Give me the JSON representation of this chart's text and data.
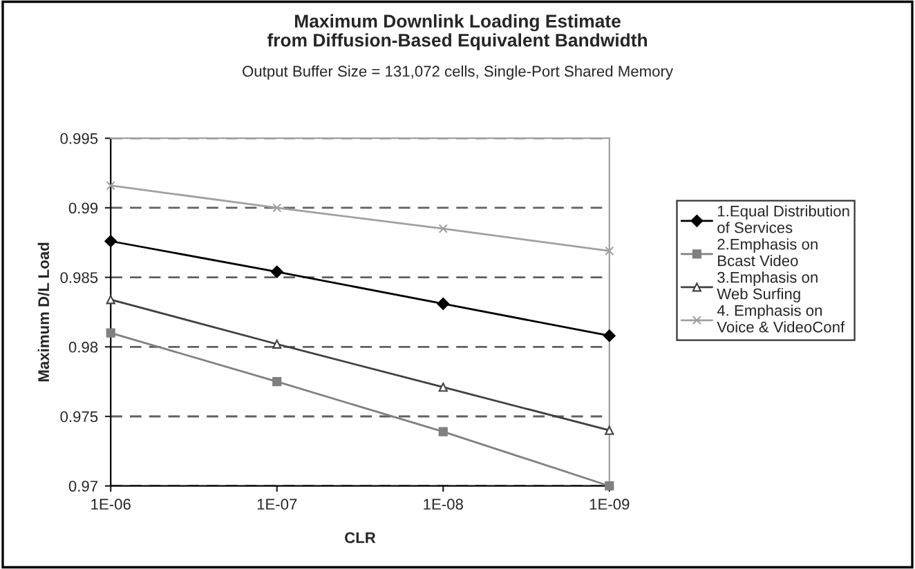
{
  "chart_data": {
    "type": "line",
    "title": "Maximum Downlink Loading Estimate\nfrom Diffusion-Based Equivalent Bandwidth",
    "subtitle": "Output Buffer Size = 131,072 cells, Single-Port Shared Memory",
    "xlabel": "CLR",
    "ylabel": "Maximum D/L Load",
    "categories": [
      "1E-06",
      "1E-07",
      "1E-08",
      "1E-09"
    ],
    "series": [
      {
        "name": "1.Equal Distribution\nof Services",
        "color": "#000000",
        "marker": "diamond",
        "values": [
          0.9876,
          0.9854,
          0.9831,
          0.9808
        ]
      },
      {
        "name": "2.Emphasis on\nBcast Video",
        "color": "#808080",
        "marker": "square",
        "values": [
          0.981,
          0.9775,
          0.9739,
          0.97
        ]
      },
      {
        "name": "3.Emphasis on\nWeb Surfing",
        "color": "#404040",
        "marker": "triangle",
        "values": [
          0.9834,
          0.9802,
          0.9771,
          0.974
        ]
      },
      {
        "name": "4. Emphasis on\nVoice & VideoConf",
        "color": "#a0a0a0",
        "marker": "cross",
        "values": [
          0.9916,
          0.99,
          0.9885,
          0.9869
        ]
      }
    ],
    "ylim": [
      0.97,
      0.995
    ],
    "yticks": [
      0.97,
      0.975,
      0.98,
      0.985,
      0.99,
      0.995
    ],
    "grid": "y",
    "legend": "right",
    "line_style": "solid"
  }
}
